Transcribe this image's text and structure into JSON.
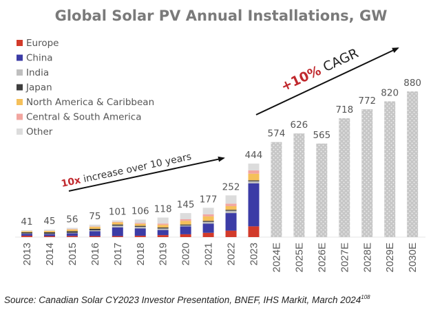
{
  "chart_data": {
    "type": "bar",
    "stacked": true,
    "title": "Global Solar PV Annual Installations, GW",
    "xlabel": "",
    "ylabel": "",
    "ylim": [
      0,
      900
    ],
    "grid": false,
    "legend_position": "top-left",
    "categories": [
      "2013",
      "2014",
      "2015",
      "2016",
      "2017",
      "2018",
      "2019",
      "2020",
      "2021",
      "2022",
      "2023",
      "2024E",
      "2025E",
      "2026E",
      "2027E",
      "2028E",
      "2029E",
      "2030E"
    ],
    "totals": [
      41,
      45,
      56,
      75,
      101,
      106,
      118,
      145,
      177,
      252,
      444,
      574,
      626,
      565,
      718,
      772,
      820,
      880
    ],
    "total_labels": [
      "41",
      "45",
      "56",
      "75",
      "101",
      "106",
      "118",
      "145",
      "177",
      "252",
      "444",
      "574",
      "626",
      "565",
      "718",
      "772",
      "820",
      "880"
    ],
    "series": [
      {
        "name": "Europe",
        "color": "#d23a2a",
        "values": [
          8,
          6,
          7,
          6,
          6,
          8,
          12,
          17,
          26,
          39,
          65,
          null,
          null,
          null,
          null,
          null,
          null,
          null
        ]
      },
      {
        "name": "China",
        "color": "#3c3ca6",
        "values": [
          12,
          12,
          16,
          30,
          53,
          44,
          31,
          48,
          55,
          106,
          260,
          null,
          null,
          null,
          null,
          null,
          null,
          null
        ]
      },
      {
        "name": "India",
        "color": "#bfbfbf",
        "values": [
          2,
          2,
          3,
          5,
          10,
          10,
          9,
          5,
          11,
          14,
          12,
          null,
          null,
          null,
          null,
          null,
          null,
          null
        ]
      },
      {
        "name": "Japan",
        "color": "#3d3d3d",
        "values": [
          7,
          9,
          10,
          9,
          7,
          6,
          6,
          6,
          6,
          6,
          6,
          null,
          null,
          null,
          null,
          null,
          null,
          null
        ]
      },
      {
        "name": "North America & Caribbean",
        "color": "#f5c05a",
        "values": [
          6,
          8,
          10,
          12,
          13,
          12,
          16,
          22,
          27,
          22,
          40,
          null,
          null,
          null,
          null,
          null,
          null,
          null
        ]
      },
      {
        "name": "Central & South America",
        "color": "#f2a6a0",
        "values": [
          0,
          1,
          2,
          2,
          3,
          5,
          8,
          10,
          12,
          15,
          20,
          null,
          null,
          null,
          null,
          null,
          null,
          null
        ]
      },
      {
        "name": "Other",
        "color": "#dcdcdc",
        "values": [
          6,
          7,
          8,
          11,
          9,
          21,
          36,
          37,
          40,
          50,
          41,
          null,
          null,
          null,
          null,
          null,
          null,
          null
        ]
      }
    ],
    "forecast": {
      "categories": [
        "2024E",
        "2025E",
        "2026E",
        "2027E",
        "2028E",
        "2029E",
        "2030E"
      ],
      "values": [
        574,
        626,
        565,
        718,
        772,
        820,
        880
      ],
      "color": "#c8c8c8",
      "pattern": "dotted"
    },
    "annotations": [
      {
        "text_emphasis": "10x",
        "text_rest": " increase over 10 years",
        "type": "arrow"
      },
      {
        "text_emphasis": "+10%",
        "text_rest": " CAGR",
        "type": "arrow"
      }
    ]
  },
  "legend": [
    {
      "label": "Europe",
      "color": "#d23a2a"
    },
    {
      "label": "China",
      "color": "#3c3ca6"
    },
    {
      "label": "India",
      "color": "#bfbfbf"
    },
    {
      "label": "Japan",
      "color": "#3d3d3d"
    },
    {
      "label": "North America & Caribbean",
      "color": "#f5c05a"
    },
    {
      "label": "Central & South America",
      "color": "#f2a6a0"
    },
    {
      "label": "Other",
      "color": "#dcdcdc"
    }
  ],
  "annotation_growth": {
    "emphasis": "10x",
    "rest": " increase over 10 years"
  },
  "annotation_cagr": {
    "emphasis": "+10%",
    "rest": " CAGR"
  },
  "source": {
    "text": "Source: Canadian Solar CY2023 Investor Presentation, BNEF, IHS Markit, March 2024",
    "superscript": "108"
  }
}
